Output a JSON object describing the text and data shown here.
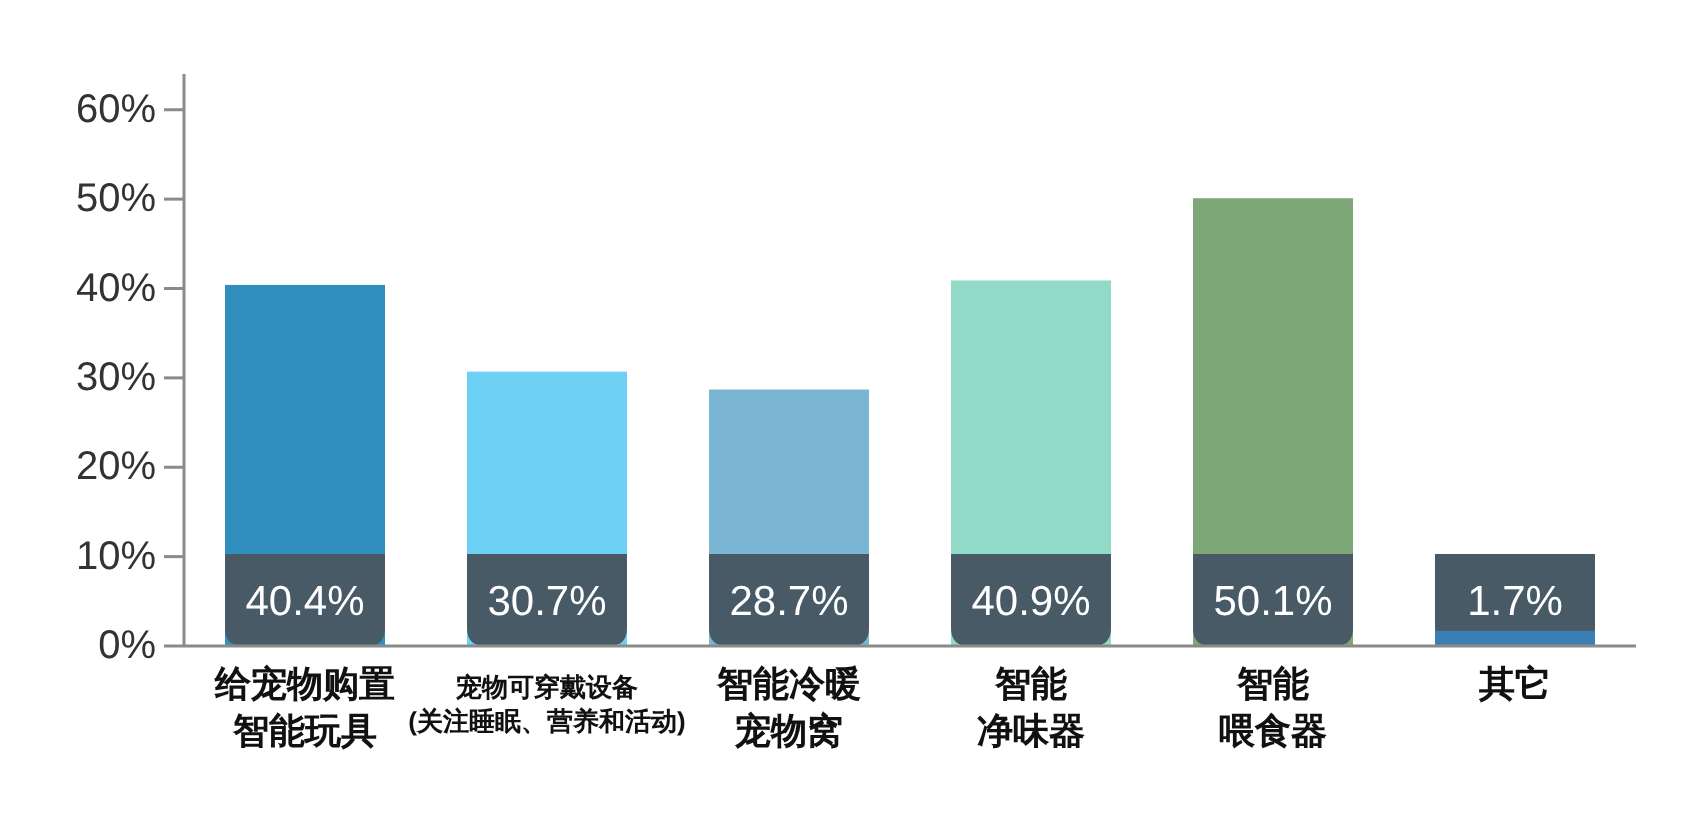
{
  "chart_data": {
    "type": "bar",
    "categories": [
      "给宠物购置智能玩具",
      "宠物可穿戴设备(关注睡眠、营养和活动)",
      "智能冷暖宠物窝",
      "智能净味器",
      "智能喂食器",
      "其它"
    ],
    "values": [
      40.4,
      30.7,
      28.7,
      40.9,
      50.1,
      1.7
    ],
    "value_labels": [
      "40.4%",
      "30.7%",
      "28.7%",
      "40.9%",
      "50.1%",
      "1.7%"
    ],
    "colors": [
      "#318fc0",
      "#6dd1f5",
      "#7bb5d4",
      "#90dac7",
      "#7da776",
      "#3a7fb4"
    ],
    "ylim": [
      0,
      64
    ],
    "yticks": [
      {
        "value": 0,
        "label": "0%"
      },
      {
        "value": 10,
        "label": "10%"
      },
      {
        "value": 20,
        "label": "20%"
      },
      {
        "value": 30,
        "label": "30%"
      },
      {
        "value": 40,
        "label": "40%"
      },
      {
        "value": 50,
        "label": "50%"
      },
      {
        "value": 60,
        "label": "60%"
      }
    ]
  }
}
